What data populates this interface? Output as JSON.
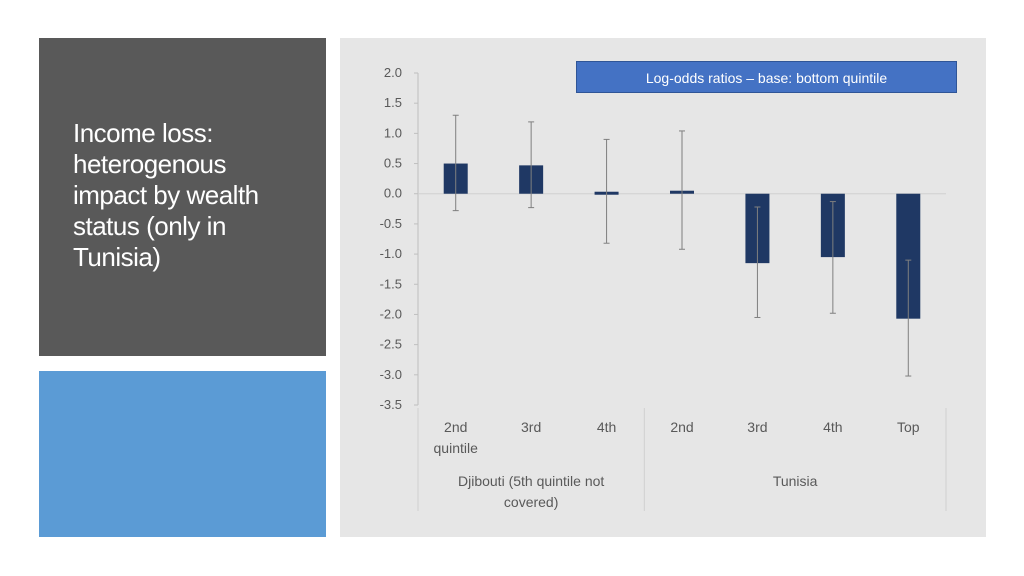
{
  "slide": {
    "title": "Income loss:\nheterogenous\nimpact by wealth\nstatus (only in\nTunisia)"
  },
  "colors": {
    "title_panel": "#595959",
    "accent_panel": "#5b9bd5",
    "chart_background": "#e6e6e6",
    "bar": "#1f3864",
    "label_box": "#4472c4"
  },
  "chart_data": {
    "type": "bar",
    "annotation": "Log-odds ratios – base: bottom quintile",
    "ylim": [
      -3.5,
      2.0
    ],
    "yticks": [
      "2.0",
      "1.5",
      "1.0",
      "0.5",
      "0.0",
      "-0.5",
      "-1.0",
      "-1.5",
      "-2.0",
      "-2.5",
      "-3.0",
      "-3.5"
    ],
    "ytick_values": [
      2.0,
      1.5,
      1.0,
      0.5,
      0.0,
      -0.5,
      -1.0,
      -1.5,
      -2.0,
      -2.5,
      -3.0,
      -3.5
    ],
    "categories": [
      "2nd quintile",
      "3rd",
      "4th",
      "2nd",
      "3rd",
      "4th",
      "Top"
    ],
    "groups": [
      {
        "name": "Djibouti (5th quintile not covered)",
        "count": 3
      },
      {
        "name": "Tunisia",
        "count": 4
      }
    ],
    "values": [
      0.5,
      0.47,
      0.03,
      0.05,
      -1.15,
      -1.05,
      -2.07
    ],
    "error_low": [
      -0.28,
      -0.23,
      -0.82,
      -0.92,
      -2.05,
      -1.98,
      -3.02
    ],
    "error_high": [
      1.3,
      1.19,
      0.9,
      1.04,
      -0.22,
      -0.13,
      -1.1
    ],
    "grid": false,
    "legend": "none"
  }
}
